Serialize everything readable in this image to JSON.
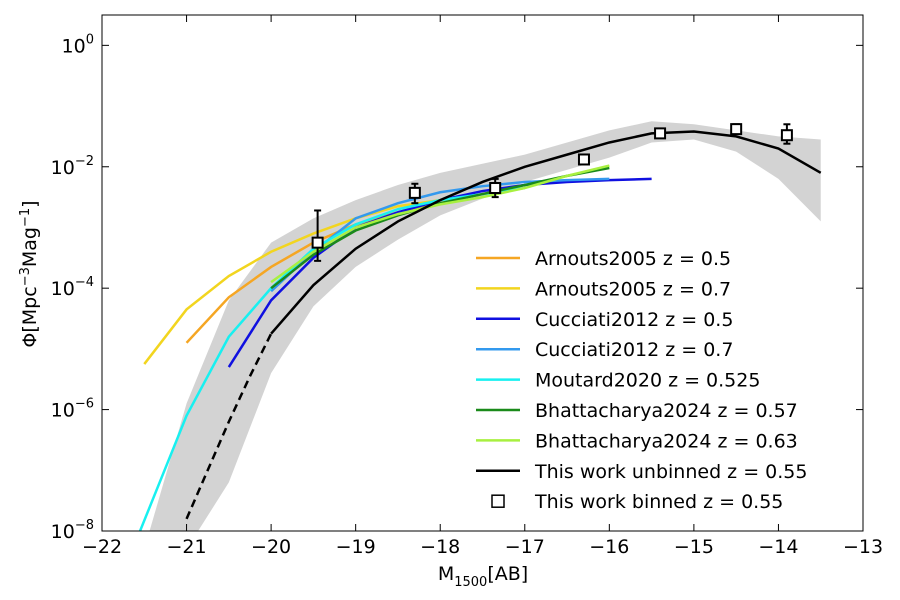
{
  "chart_data": {
    "type": "line",
    "xlabel": {
      "base": "M",
      "sub": "1500",
      "suffix": "[AB]"
    },
    "ylabel": {
      "p1": "Φ[Mpc",
      "s1": "−3",
      "p2": "Mag",
      "s2": "−1",
      "p3": "]"
    },
    "xlim": [
      -22,
      -13
    ],
    "ylim_log10": [
      -8,
      0.5
    ],
    "x_ticks": [
      {
        "value": -22,
        "label": "−22"
      },
      {
        "value": -21,
        "label": "−21"
      },
      {
        "value": -20,
        "label": "−20"
      },
      {
        "value": -19,
        "label": "−19"
      },
      {
        "value": -18,
        "label": "−18"
      },
      {
        "value": -17,
        "label": "−17"
      },
      {
        "value": -16,
        "label": "−16"
      },
      {
        "value": -15,
        "label": "−15"
      },
      {
        "value": -14,
        "label": "−14"
      },
      {
        "value": -13,
        "label": "−13"
      }
    ],
    "y_ticks": [
      {
        "log": 0,
        "base": "10",
        "exp": "0"
      },
      {
        "log": -2,
        "base": "10",
        "exp": "−2"
      },
      {
        "log": -4,
        "base": "10",
        "exp": "−4"
      },
      {
        "log": -6,
        "base": "10",
        "exp": "−6"
      },
      {
        "log": -8,
        "base": "10",
        "exp": "−8"
      }
    ],
    "band": {
      "color": "#d3d3d3",
      "upper": [
        [
          -21.5,
          -8.3
        ],
        [
          -21,
          -5.9
        ],
        [
          -20.5,
          -4.2
        ],
        [
          -20,
          -3.25
        ],
        [
          -19.5,
          -2.85
        ],
        [
          -19,
          -2.55
        ],
        [
          -18.5,
          -2.3
        ],
        [
          -18,
          -2.1
        ],
        [
          -17,
          -1.8
        ],
        [
          -16,
          -1.4
        ],
        [
          -15.5,
          -1.25
        ],
        [
          -15,
          -1.3
        ],
        [
          -14.5,
          -1.4
        ],
        [
          -14,
          -1.5
        ],
        [
          -13.5,
          -1.55
        ]
      ],
      "lower": [
        [
          -13.5,
          -2.9
        ],
        [
          -14,
          -2.2
        ],
        [
          -14.5,
          -1.75
        ],
        [
          -15,
          -1.55
        ],
        [
          -15.5,
          -1.6
        ],
        [
          -16,
          -1.85
        ],
        [
          -17,
          -2.25
        ],
        [
          -18,
          -2.8
        ],
        [
          -18.5,
          -3.2
        ],
        [
          -19,
          -3.65
        ],
        [
          -19.5,
          -4.3
        ],
        [
          -20,
          -5.4
        ],
        [
          -20.5,
          -7.2
        ],
        [
          -21,
          -8.3
        ]
      ]
    },
    "series": [
      {
        "name": "Arnouts2005 z = 0.5",
        "color": "#f5a623",
        "x": [
          -21,
          -20.5,
          -20,
          -19.5,
          -19,
          -18.5,
          -18,
          -17.5,
          -17
        ],
        "log_y": [
          -4.9,
          -4.15,
          -3.65,
          -3.25,
          -2.95,
          -2.75,
          -2.6,
          -2.45,
          -2.3
        ]
      },
      {
        "name": "Arnouts2005 z = 0.7",
        "color": "#f2d51f",
        "x": [
          -21.5,
          -21,
          -20.5,
          -20,
          -19.5,
          -19,
          -18.5,
          -18,
          -17.5,
          -17
        ],
        "log_y": [
          -5.25,
          -4.35,
          -3.8,
          -3.4,
          -3.1,
          -2.85,
          -2.65,
          -2.55,
          -2.45,
          -2.35
        ]
      },
      {
        "name": "Cucciati2012 z = 0.5",
        "color": "#1010e0",
        "x": [
          -20.5,
          -20,
          -19.5,
          -19,
          -18.5,
          -18,
          -17.5,
          -17,
          -16.5,
          -16,
          -15.5
        ],
        "log_y": [
          -5.3,
          -4.2,
          -3.5,
          -3.0,
          -2.75,
          -2.55,
          -2.4,
          -2.3,
          -2.25,
          -2.22,
          -2.2
        ]
      },
      {
        "name": "Cucciati2012 z = 0.7",
        "color": "#3399ee",
        "x": [
          -20,
          -19.5,
          -19,
          -18.5,
          -18,
          -17.5,
          -17,
          -16.5,
          -16
        ],
        "log_y": [
          -4.05,
          -3.4,
          -2.85,
          -2.6,
          -2.42,
          -2.32,
          -2.25,
          -2.22,
          -2.2
        ]
      },
      {
        "name": "Moutard2020 z = 0.525",
        "color": "#18f0f0",
        "x": [
          -21.55,
          -21,
          -20.5,
          -20,
          -19.5,
          -19,
          -18.5,
          -18,
          -17.5,
          -17
        ],
        "log_y": [
          -8.0,
          -6.1,
          -4.8,
          -4.0,
          -3.35,
          -2.95,
          -2.7,
          -2.55,
          -2.45,
          -2.35
        ]
      },
      {
        "name": "Bhattacharya2024 z = 0.57",
        "color": "#1a8a1a",
        "x": [
          -20,
          -19.5,
          -19,
          -18.5,
          -18,
          -17.5,
          -17,
          -16.5,
          -16
        ],
        "log_y": [
          -4.0,
          -3.45,
          -3.05,
          -2.8,
          -2.6,
          -2.45,
          -2.3,
          -2.15,
          -2.02
        ]
      },
      {
        "name": "Bhattacharya2024 z = 0.63",
        "color": "#a8f040",
        "x": [
          -20,
          -19.5,
          -19,
          -18.5,
          -18,
          -17.5,
          -17,
          -16.5,
          -16
        ],
        "log_y": [
          -3.9,
          -3.4,
          -3.0,
          -2.78,
          -2.62,
          -2.5,
          -2.35,
          -2.15,
          -1.98
        ]
      },
      {
        "name": "This work unbinned z = 0.55",
        "color": "#000000",
        "dashed_x": [
          -21,
          -20.75,
          -20.5,
          -20.25,
          -20
        ],
        "dashed_log_y": [
          -7.8,
          -7.0,
          -6.2,
          -5.45,
          -4.75
        ],
        "x": [
          -20,
          -19.5,
          -19,
          -18.5,
          -18,
          -17.5,
          -17,
          -16.5,
          -16,
          -15.5,
          -15,
          -14.5,
          -14,
          -13.5
        ],
        "log_y": [
          -4.75,
          -3.95,
          -3.35,
          -2.9,
          -2.55,
          -2.25,
          -2.0,
          -1.8,
          -1.6,
          -1.45,
          -1.42,
          -1.5,
          -1.7,
          -2.1
        ]
      }
    ],
    "binned": {
      "name": "This work binned z = 0.55",
      "color": "#000000",
      "x": [
        -19.45,
        -18.3,
        -17.35,
        -16.3,
        -15.4,
        -14.5,
        -13.9
      ],
      "log_y": [
        -3.25,
        -2.43,
        -2.35,
        -1.88,
        -1.45,
        -1.38,
        -1.48
      ],
      "err_lo": [
        -3.55,
        -2.6,
        -2.5,
        -1.95,
        -1.52,
        -1.45,
        -1.62
      ],
      "err_hi": [
        -2.72,
        -2.28,
        -2.2,
        -1.8,
        -1.38,
        -1.3,
        -1.3
      ]
    }
  }
}
